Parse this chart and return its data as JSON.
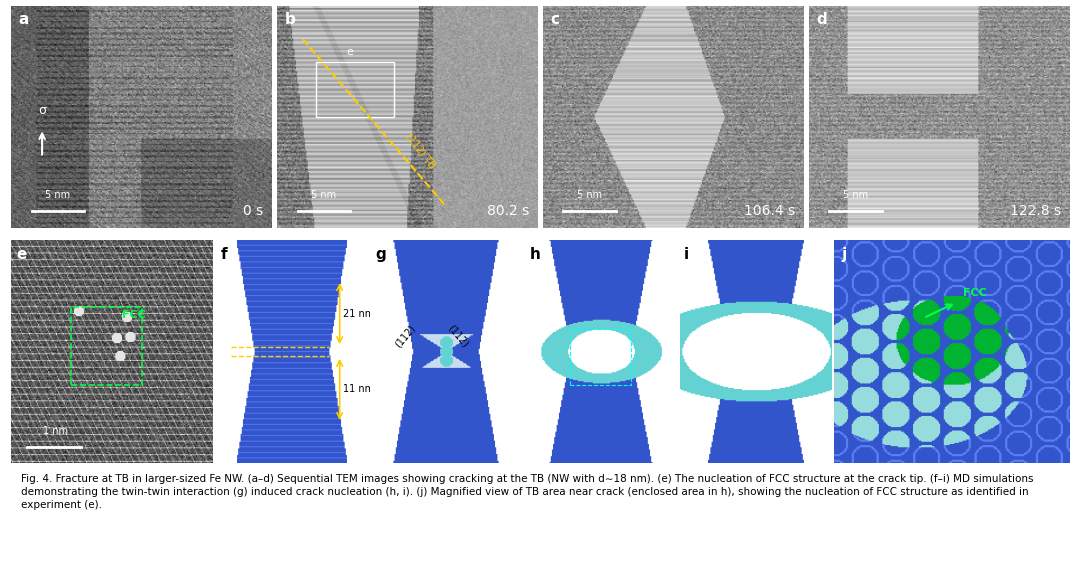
{
  "fig_width": 10.8,
  "fig_height": 5.76,
  "dpi": 100,
  "background_color": "#ffffff",
  "panel_labels": [
    "a",
    "b",
    "c",
    "d",
    "e",
    "f",
    "g",
    "h",
    "i",
    "j"
  ],
  "top_timestamps": [
    "0 s",
    "80.2 s",
    "106.4 s",
    "122.8 s"
  ],
  "scale_bars_top": [
    "5 nm",
    "5 nm",
    "5 nm",
    "5 nm"
  ],
  "scale_bar_bottom_e": "1 nm",
  "caption_bold": "Fig. 4.",
  "caption_text": " Fracture at TB in larger-sized Fe NW. (a–d) Sequential TEM images showing cracking at the TB (NW with d∼18 nm). (e) The nucleation of FCC structure at the crack tip. (f–i) MD simulations demonstrating the twin-twin interaction (g) induced crack nucleation (h, i). (j) Magnified view of TB area near crack (enclosed area in h), showing the nucleation of FCC structure as identified in experiment (e).",
  "yellow_label": "(112) TB",
  "f_label_21nm": "21 nm",
  "f_label_11nm": "11 nm",
  "g_label_112_left": "(112)",
  "g_label_112_right": "(112)",
  "fcc_label_color": "#00ff00",
  "sim_blue_color": "#3355cc",
  "sim_cyan_color": "#66dddd",
  "sim_green_color": "#00cc44"
}
